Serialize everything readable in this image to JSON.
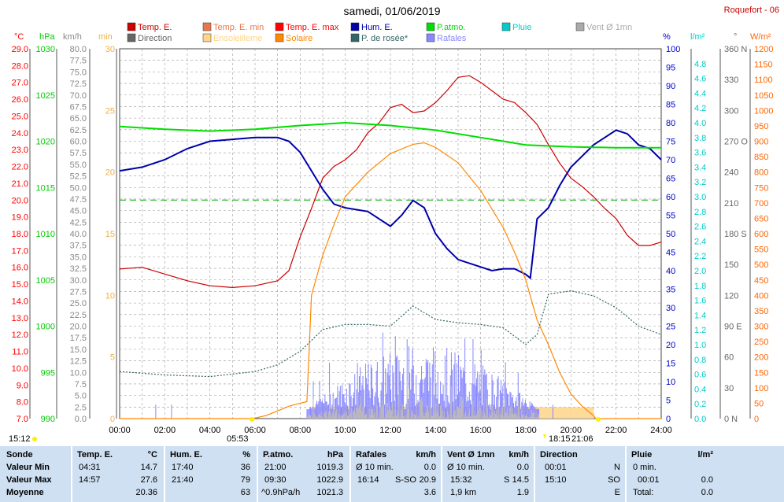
{
  "title": "samedi, 01/06/2019",
  "station": "Roquefort - 06",
  "legend": [
    {
      "label": "Temp. E.",
      "color": "#cc0000"
    },
    {
      "label": "Temp. E. min",
      "color": "#e8774a"
    },
    {
      "label": "Temp. E. max",
      "color": "#ff0000"
    },
    {
      "label": "Hum. E.",
      "color": "#0000aa"
    },
    {
      "label": "P.atmo.",
      "color": "#00dd00"
    },
    {
      "label": "Pluie",
      "color": "#00cccc"
    },
    {
      "label": "Vent Ø 1mn",
      "color": "#aaaaaa"
    },
    {
      "label": "Direction",
      "color": "#666666"
    },
    {
      "label": "Ensoleilleme",
      "color": "#ffd58a"
    },
    {
      "label": "Solaire",
      "color": "#ff8800"
    },
    {
      "label": "P. de rosée*",
      "color": "#336666"
    },
    {
      "label": "Rafales",
      "color": "#8888ff"
    }
  ],
  "axis_units": {
    "temp": "°C",
    "press": "hPa",
    "wind": "km/h",
    "sun": "min",
    "hum": "%",
    "rain": "l/m²",
    "dir": "°",
    "solar": "W/m²"
  },
  "colors": {
    "temp": "#ff0000",
    "press": "#00cc00",
    "wind": "#888888",
    "sun": "#f0b040",
    "hum": "#0000cc",
    "rain": "#00cccc",
    "dir": "#666666",
    "solar": "#ff6600",
    "grid": "#999999"
  },
  "chart_data": {
    "type": "line",
    "x_range_hours": [
      0,
      24
    ],
    "x_ticks": [
      "00:00",
      "02:00",
      "04:00",
      "06:00",
      "08:00",
      "10:00",
      "12:00",
      "14:00",
      "16:00",
      "18:00",
      "20:00",
      "22:00",
      "24:00"
    ],
    "axes": {
      "temp": {
        "range": [
          7,
          29
        ],
        "ticks": [
          "29.0",
          "28.0",
          "27.0",
          "26.0",
          "25.0",
          "24.0",
          "23.0",
          "22.0",
          "21.0",
          "20.0",
          "19.0",
          "18.0",
          "17.0",
          "16.0",
          "15.0",
          "14.0",
          "13.0",
          "12.0",
          "11.0",
          "10.0",
          "9.0",
          "8.0",
          "7.0"
        ]
      },
      "press": {
        "range": [
          990,
          1030
        ],
        "ticks": [
          "1030",
          "1025",
          "1020",
          "1015",
          "1010",
          "1005",
          "1000",
          "995",
          "990"
        ]
      },
      "wind": {
        "range": [
          0,
          80
        ],
        "ticks": [
          "80.0",
          "77.5",
          "75.0",
          "72.5",
          "70.0",
          "67.5",
          "65.0",
          "62.5",
          "60.0",
          "57.5",
          "55.0",
          "52.5",
          "50.0",
          "47.5",
          "45.0",
          "42.5",
          "40.0",
          "37.5",
          "35.0",
          "32.5",
          "30.0",
          "27.5",
          "25.0",
          "22.5",
          "20.0",
          "17.5",
          "15.0",
          "12.5",
          "10.0",
          "7.5",
          "5.0",
          "2.5",
          "0.0"
        ]
      },
      "sun": {
        "range": [
          0,
          30
        ],
        "ticks": [
          "30",
          "25",
          "20",
          "15",
          "10",
          "5",
          "0"
        ]
      },
      "hum": {
        "range": [
          0,
          100
        ],
        "ticks": [
          "100",
          "95",
          "90",
          "85",
          "80",
          "75",
          "70",
          "65",
          "60",
          "55",
          "50",
          "45",
          "40",
          "35",
          "30",
          "25",
          "20",
          "15",
          "10",
          "5",
          "0"
        ]
      },
      "rain": {
        "range": [
          0,
          5
        ],
        "ticks": [
          "4.8",
          "4.6",
          "4.4",
          "4.2",
          "4.0",
          "3.8",
          "3.6",
          "3.4",
          "3.2",
          "3.0",
          "2.8",
          "2.6",
          "2.4",
          "2.2",
          "2.0",
          "1.8",
          "1.6",
          "1.4",
          "1.2",
          "1.0",
          "0.8",
          "0.6",
          "0.4",
          "0.2",
          "0.0"
        ]
      },
      "dir": {
        "range": [
          0,
          360
        ],
        "ticks": [
          "360 N",
          "330",
          "300",
          "270 O",
          "240",
          "210",
          "180 S",
          "150",
          "120",
          "90 E",
          "60",
          "30",
          "0 N"
        ]
      },
      "solar": {
        "range": [
          0,
          1200
        ],
        "ticks": [
          "1200",
          "1150",
          "1100",
          "1050",
          "1000",
          "950",
          "900",
          "850",
          "800",
          "750",
          "700",
          "650",
          "600",
          "550",
          "500",
          "450",
          "400",
          "350",
          "300",
          "250",
          "200",
          "150",
          "100",
          "50",
          "0"
        ]
      }
    },
    "series": [
      {
        "name": "Temp. E.",
        "axis": "temp",
        "color": "#cc0000",
        "points": [
          [
            0,
            15.9
          ],
          [
            1,
            16.0
          ],
          [
            2,
            15.6
          ],
          [
            3,
            15.2
          ],
          [
            4,
            14.9
          ],
          [
            5,
            14.8
          ],
          [
            6,
            14.9
          ],
          [
            7,
            15.2
          ],
          [
            7.5,
            15.8
          ],
          [
            8,
            17.8
          ],
          [
            8.5,
            19.5
          ],
          [
            9,
            21.3
          ],
          [
            9.5,
            22.0
          ],
          [
            10,
            22.4
          ],
          [
            10.5,
            23.0
          ],
          [
            11,
            24.0
          ],
          [
            11.5,
            24.6
          ],
          [
            12,
            25.5
          ],
          [
            12.5,
            25.7
          ],
          [
            13,
            25.2
          ],
          [
            13.5,
            25.3
          ],
          [
            14,
            25.8
          ],
          [
            14.5,
            26.5
          ],
          [
            15,
            27.3
          ],
          [
            15.5,
            27.4
          ],
          [
            16,
            27.0
          ],
          [
            16.5,
            26.5
          ],
          [
            17,
            26.0
          ],
          [
            17.5,
            25.8
          ],
          [
            18,
            25.2
          ],
          [
            18.5,
            24.5
          ],
          [
            19,
            23.3
          ],
          [
            19.5,
            22.2
          ],
          [
            20,
            21.3
          ],
          [
            20.5,
            20.8
          ],
          [
            21,
            20.2
          ],
          [
            21.5,
            19.5
          ],
          [
            22,
            18.9
          ],
          [
            22.5,
            17.9
          ],
          [
            23,
            17.3
          ],
          [
            23.5,
            17.3
          ],
          [
            24,
            17.5
          ]
        ]
      },
      {
        "name": "Hum. E.",
        "axis": "hum",
        "color": "#0000aa",
        "points": [
          [
            0,
            67
          ],
          [
            1,
            68
          ],
          [
            2,
            70
          ],
          [
            3,
            73
          ],
          [
            4,
            75
          ],
          [
            5,
            75.5
          ],
          [
            6,
            76
          ],
          [
            7,
            76
          ],
          [
            7.5,
            75
          ],
          [
            8,
            72
          ],
          [
            8.5,
            67
          ],
          [
            9,
            62
          ],
          [
            9.5,
            58
          ],
          [
            10,
            57
          ],
          [
            11,
            56
          ],
          [
            12,
            52
          ],
          [
            12.5,
            55
          ],
          [
            13,
            59
          ],
          [
            13.5,
            57
          ],
          [
            14,
            50
          ],
          [
            14.5,
            46
          ],
          [
            15,
            43
          ],
          [
            16,
            41
          ],
          [
            16.5,
            40
          ],
          [
            17,
            40.5
          ],
          [
            17.5,
            40.5
          ],
          [
            18,
            39
          ],
          [
            18.2,
            38
          ],
          [
            18.5,
            54
          ],
          [
            19,
            57
          ],
          [
            19.5,
            63
          ],
          [
            20,
            68
          ],
          [
            20.5,
            71
          ],
          [
            21,
            74
          ],
          [
            21.5,
            76
          ],
          [
            22,
            78
          ],
          [
            22.5,
            77
          ],
          [
            23,
            74
          ],
          [
            23.5,
            73
          ],
          [
            24,
            70
          ]
        ]
      },
      {
        "name": "P.atmo.",
        "axis": "press",
        "color": "#00dd00",
        "points": [
          [
            0,
            1021.6
          ],
          [
            2,
            1021.3
          ],
          [
            4,
            1021.1
          ],
          [
            6,
            1021.3
          ],
          [
            8,
            1021.7
          ],
          [
            10,
            1022.0
          ],
          [
            12,
            1021.7
          ],
          [
            14,
            1021.2
          ],
          [
            16,
            1020.4
          ],
          [
            18,
            1019.6
          ],
          [
            20,
            1019.4
          ],
          [
            22,
            1019.3
          ],
          [
            24,
            1019.3
          ]
        ]
      },
      {
        "name": "Solaire",
        "axis": "solar",
        "color": "#ff8800",
        "points": [
          [
            0,
            0
          ],
          [
            5.9,
            0
          ],
          [
            6.5,
            10
          ],
          [
            7,
            25
          ],
          [
            7.5,
            40
          ],
          [
            8,
            50
          ],
          [
            8.3,
            55
          ],
          [
            8.5,
            400
          ],
          [
            9,
            530
          ],
          [
            9.5,
            630
          ],
          [
            10,
            720
          ],
          [
            11,
            800
          ],
          [
            12,
            860
          ],
          [
            13,
            890
          ],
          [
            13.5,
            895
          ],
          [
            14,
            880
          ],
          [
            15,
            830
          ],
          [
            16,
            740
          ],
          [
            17,
            620
          ],
          [
            17.5,
            540
          ],
          [
            18,
            450
          ],
          [
            18.5,
            320
          ],
          [
            19,
            240
          ],
          [
            19.5,
            150
          ],
          [
            20,
            80
          ],
          [
            20.5,
            40
          ],
          [
            21,
            10
          ],
          [
            21.1,
            0
          ],
          [
            24,
            0
          ]
        ]
      },
      {
        "name": "P. de rosée*",
        "axis": "temp",
        "color": "#336666",
        "points": [
          [
            0,
            9.8
          ],
          [
            2,
            9.6
          ],
          [
            4,
            9.5
          ],
          [
            6,
            9.8
          ],
          [
            7,
            10.2
          ],
          [
            8,
            11.0
          ],
          [
            9,
            12.3
          ],
          [
            10,
            12.6
          ],
          [
            11,
            12.6
          ],
          [
            12,
            12.5
          ],
          [
            13,
            13.7
          ],
          [
            14,
            12.9
          ],
          [
            15,
            12.7
          ],
          [
            16,
            12.6
          ],
          [
            17,
            12.4
          ],
          [
            18,
            11.4
          ],
          [
            18.5,
            12.0
          ],
          [
            19,
            14.4
          ],
          [
            20,
            14.6
          ],
          [
            21,
            14.3
          ],
          [
            22,
            13.6
          ],
          [
            23,
            12.5
          ],
          [
            24,
            12.0
          ]
        ]
      }
    ]
  },
  "bottom_labels": {
    "time_1512": "15:12",
    "sunrise": "05:53",
    "t1815": "18:15",
    "sunset": "21:06"
  },
  "summary": {
    "rows": [
      "Sonde",
      "Valeur Min",
      "Valeur Max",
      "Moyenne"
    ],
    "temp": {
      "header": "Temp. E.",
      "unit": "°C",
      "min_time": "04:31",
      "min": "14.7",
      "max_time": "14:57",
      "max": "27.6",
      "avg": "20.36"
    },
    "hum": {
      "header": "Hum. E.",
      "unit": "%",
      "min_time": "17:40",
      "min": "36",
      "max_time": "21:40",
      "max": "79",
      "avg": "63"
    },
    "press": {
      "header": "P.atmo.",
      "unit": "hPa",
      "min_time": "21:00",
      "min": "1019.3",
      "max_time": "09:30",
      "max": "1022.9",
      "avg_label": "^0.9hPa/h",
      "avg": "1021.3"
    },
    "gust": {
      "header": "Rafales",
      "unit": "km/h",
      "min_label": "Ø 10 min.",
      "min": "0.0",
      "max_time": "16:14",
      "max_dir": "S-SO",
      "max": "20.9",
      "avg": "3.6"
    },
    "wind": {
      "header": "Vent Ø 1mn",
      "unit": "km/h",
      "min_label": "Ø 10 min.",
      "min": "0.0",
      "max_time": "15:32",
      "max_dir": "S",
      "max": "14.5",
      "avg_label": "1,9 km",
      "avg": "1.9"
    },
    "dir": {
      "header": "Direction",
      "min_time": "00:01",
      "min": "N",
      "max_time": "15:10",
      "max": "SO",
      "avg": "E"
    },
    "rain": {
      "header": "Pluie",
      "unit": "l/m²",
      "min_label": "0 min.",
      "max_time": "00:01",
      "max": "0.0",
      "avg_label": "Total:",
      "avg": "0.0"
    }
  }
}
